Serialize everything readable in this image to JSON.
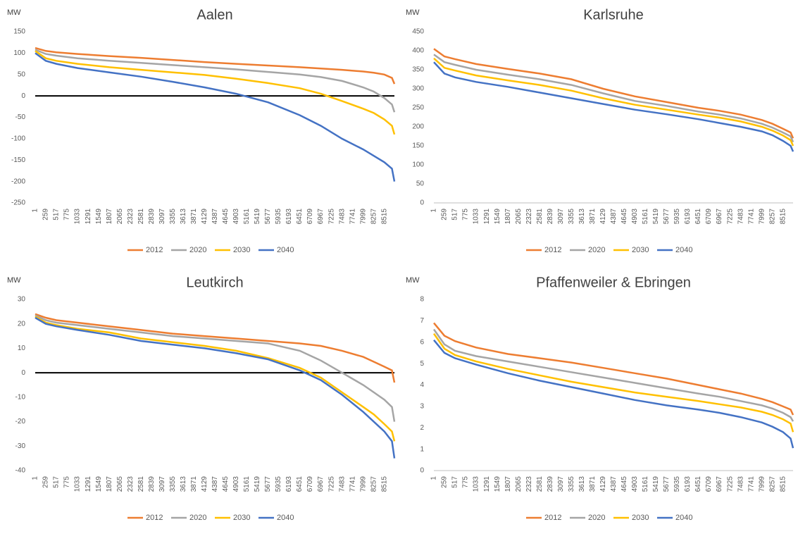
{
  "chart_data": [
    {
      "type": "line",
      "title": "Aalen",
      "ylabel": "MW",
      "zero_line": true,
      "x": [
        1,
        259,
        517,
        1033,
        1807,
        2581,
        3355,
        4129,
        4903,
        5677,
        6451,
        6967,
        7483,
        7999,
        8257,
        8515,
        8700,
        8760
      ],
      "xlim": [
        1,
        8760
      ],
      "xticks": [
        1,
        259,
        517,
        775,
        1033,
        1291,
        1549,
        1807,
        2065,
        2323,
        2581,
        2839,
        3097,
        3355,
        3613,
        3871,
        4129,
        4387,
        4645,
        4903,
        5161,
        5419,
        5677,
        5935,
        6193,
        6451,
        6709,
        6967,
        7225,
        7483,
        7741,
        7999,
        8257,
        8515
      ],
      "ylim": [
        -250,
        150
      ],
      "yticks": [
        -250,
        -200,
        -150,
        -100,
        -50,
        0,
        50,
        100,
        150
      ],
      "series": [
        {
          "name": "2012",
          "color": "#ed7d31",
          "values": [
            112,
            105,
            102,
            98,
            93,
            89,
            84,
            79,
            75,
            71,
            67,
            64,
            61,
            57,
            54,
            50,
            42,
            28
          ]
        },
        {
          "name": "2020",
          "color": "#a5a5a5",
          "values": [
            108,
            98,
            94,
            88,
            82,
            77,
            72,
            67,
            62,
            56,
            50,
            44,
            35,
            20,
            10,
            -5,
            -20,
            -38
          ]
        },
        {
          "name": "2030",
          "color": "#ffc000",
          "values": [
            105,
            88,
            82,
            75,
            67,
            61,
            55,
            49,
            40,
            30,
            18,
            5,
            -12,
            -30,
            -40,
            -55,
            -70,
            -90
          ]
        },
        {
          "name": "2040",
          "color": "#4472c4",
          "values": [
            100,
            82,
            75,
            65,
            55,
            45,
            33,
            20,
            5,
            -15,
            -45,
            -70,
            -100,
            -125,
            -140,
            -155,
            -170,
            -200
          ]
        }
      ]
    },
    {
      "type": "line",
      "title": "Karlsruhe",
      "ylabel": "MW",
      "zero_line": false,
      "x": [
        1,
        259,
        517,
        1033,
        1807,
        2581,
        3355,
        4129,
        4903,
        5677,
        6451,
        6967,
        7483,
        7999,
        8257,
        8515,
        8700,
        8760
      ],
      "xlim": [
        1,
        8760
      ],
      "xticks": [
        1,
        259,
        517,
        775,
        1033,
        1291,
        1549,
        1807,
        2065,
        2323,
        2581,
        2839,
        3097,
        3355,
        3613,
        3871,
        4129,
        4387,
        4645,
        4903,
        5161,
        5419,
        5677,
        5935,
        6193,
        6451,
        6709,
        6967,
        7225,
        7483,
        7741,
        7999,
        8257,
        8515
      ],
      "ylim": [
        0,
        450
      ],
      "yticks": [
        0,
        50,
        100,
        150,
        200,
        250,
        300,
        350,
        400,
        450
      ],
      "series": [
        {
          "name": "2012",
          "color": "#ed7d31",
          "values": [
            405,
            385,
            378,
            365,
            352,
            340,
            325,
            300,
            280,
            265,
            250,
            242,
            232,
            218,
            208,
            195,
            185,
            170
          ]
        },
        {
          "name": "2020",
          "color": "#a5a5a5",
          "values": [
            390,
            370,
            363,
            350,
            337,
            325,
            310,
            288,
            268,
            255,
            240,
            232,
            222,
            208,
            198,
            185,
            175,
            160
          ]
        },
        {
          "name": "2030",
          "color": "#ffc000",
          "values": [
            380,
            355,
            348,
            335,
            322,
            310,
            295,
            275,
            258,
            245,
            232,
            224,
            214,
            200,
            190,
            177,
            165,
            150
          ]
        },
        {
          "name": "2040",
          "color": "#4472c4",
          "values": [
            370,
            340,
            330,
            318,
            305,
            290,
            275,
            260,
            245,
            233,
            220,
            210,
            200,
            188,
            178,
            163,
            150,
            135
          ]
        }
      ]
    },
    {
      "type": "line",
      "title": "Leutkirch",
      "ylabel": "MW",
      "zero_line": true,
      "x": [
        1,
        259,
        517,
        1033,
        1807,
        2581,
        3355,
        4129,
        4903,
        5677,
        6451,
        6967,
        7483,
        7999,
        8257,
        8515,
        8700,
        8760
      ],
      "xlim": [
        1,
        8760
      ],
      "xticks": [
        1,
        259,
        517,
        775,
        1033,
        1291,
        1549,
        1807,
        2065,
        2323,
        2581,
        2839,
        3097,
        3355,
        3613,
        3871,
        4129,
        4387,
        4645,
        4903,
        5161,
        5419,
        5677,
        5935,
        6193,
        6451,
        6709,
        6967,
        7225,
        7483,
        7741,
        7999,
        8257,
        8515
      ],
      "ylim": [
        -40,
        30
      ],
      "yticks": [
        -40,
        -30,
        -20,
        -10,
        0,
        10,
        20,
        30
      ],
      "series": [
        {
          "name": "2012",
          "color": "#ed7d31",
          "values": [
            24,
            22.5,
            21.5,
            20.5,
            19,
            17.5,
            16,
            15,
            14,
            13,
            12,
            11,
            9,
            6.5,
            4.5,
            2.5,
            1,
            -4
          ]
        },
        {
          "name": "2020",
          "color": "#a5a5a5",
          "values": [
            23.5,
            21.5,
            20.5,
            19.5,
            18,
            16.5,
            15,
            14,
            13,
            12,
            9,
            5,
            0,
            -5,
            -8,
            -11,
            -14,
            -20
          ]
        },
        {
          "name": "2030",
          "color": "#ffc000",
          "values": [
            23,
            20.5,
            19.5,
            18,
            16.5,
            14,
            12.5,
            11,
            9,
            6,
            2,
            -2,
            -8,
            -14,
            -17,
            -21,
            -24,
            -28
          ]
        },
        {
          "name": "2040",
          "color": "#4472c4",
          "values": [
            22.5,
            20,
            19,
            17.5,
            15.5,
            13,
            11.5,
            10,
            8,
            5.5,
            1,
            -3,
            -9,
            -16,
            -20,
            -24,
            -28,
            -35
          ]
        }
      ]
    },
    {
      "type": "line",
      "title": "Pfaffenweiler & Ebringen",
      "ylabel": "MW",
      "zero_line": false,
      "x": [
        1,
        259,
        517,
        1033,
        1807,
        2581,
        3355,
        4129,
        4903,
        5677,
        6451,
        6967,
        7483,
        7999,
        8257,
        8515,
        8700,
        8760
      ],
      "xlim": [
        1,
        8760
      ],
      "xticks": [
        1,
        259,
        517,
        775,
        1033,
        1291,
        1549,
        1807,
        2065,
        2323,
        2581,
        2839,
        3097,
        3355,
        3613,
        3871,
        4129,
        4387,
        4645,
        4903,
        5161,
        5419,
        5677,
        5935,
        6193,
        6451,
        6709,
        6967,
        7225,
        7483,
        7741,
        7999,
        8257,
        8515
      ],
      "ylim": [
        0,
        8
      ],
      "yticks": [
        0,
        1,
        2,
        3,
        4,
        5,
        6,
        7,
        8
      ],
      "series": [
        {
          "name": "2012",
          "color": "#ed7d31",
          "values": [
            6.9,
            6.3,
            6.05,
            5.75,
            5.45,
            5.25,
            5.05,
            4.8,
            4.55,
            4.3,
            4.0,
            3.8,
            3.6,
            3.35,
            3.2,
            3.0,
            2.85,
            2.6
          ]
        },
        {
          "name": "2020",
          "color": "#a5a5a5",
          "values": [
            6.6,
            5.9,
            5.6,
            5.35,
            5.1,
            4.85,
            4.6,
            4.35,
            4.1,
            3.85,
            3.6,
            3.45,
            3.25,
            3.05,
            2.9,
            2.7,
            2.5,
            2.3
          ]
        },
        {
          "name": "2030",
          "color": "#ffc000",
          "values": [
            6.4,
            5.7,
            5.4,
            5.1,
            4.75,
            4.45,
            4.15,
            3.9,
            3.65,
            3.45,
            3.25,
            3.1,
            2.95,
            2.75,
            2.6,
            2.4,
            2.2,
            1.8
          ]
        },
        {
          "name": "2040",
          "color": "#4472c4",
          "values": [
            6.1,
            5.5,
            5.25,
            4.95,
            4.55,
            4.2,
            3.9,
            3.6,
            3.3,
            3.05,
            2.85,
            2.7,
            2.5,
            2.25,
            2.05,
            1.8,
            1.5,
            1.05
          ]
        }
      ]
    }
  ]
}
